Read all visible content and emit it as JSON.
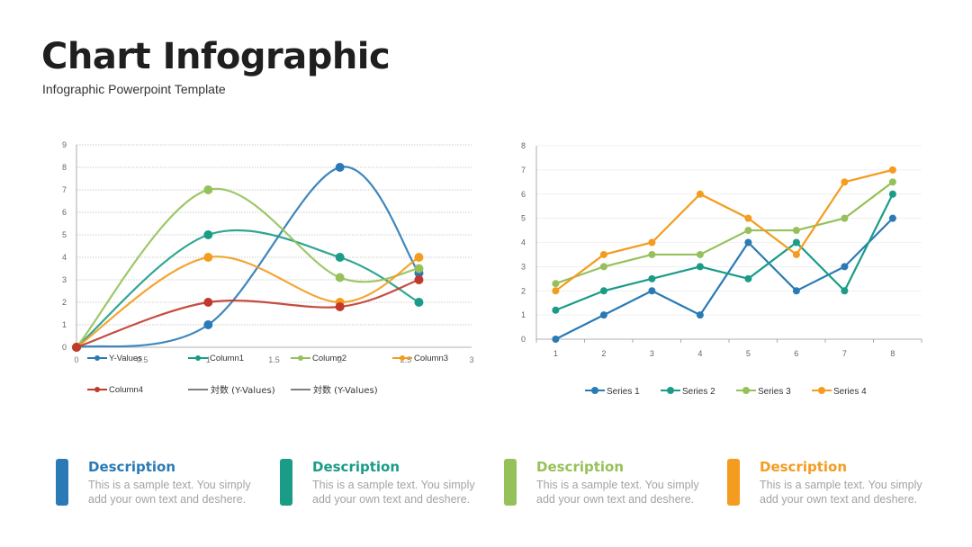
{
  "header": {
    "title": "Chart Infographic",
    "subtitle": "Infographic Powerpoint Template"
  },
  "chart_data": [
    {
      "type": "scatter",
      "smooth": true,
      "x": [
        0,
        1,
        2,
        2.6
      ],
      "xlim": [
        0,
        3
      ],
      "ylim": [
        0,
        9
      ],
      "x_ticks": [
        "0",
        "0.5",
        "1",
        "1.5",
        "2",
        "2.5",
        "3"
      ],
      "y_ticks": [
        "0",
        "1",
        "2",
        "3",
        "4",
        "5",
        "6",
        "7",
        "8",
        "9"
      ],
      "grid": true,
      "legend_position": "bottom",
      "series": [
        {
          "name": "Y-Values",
          "color": "#2a7ab6",
          "values": [
            0,
            1,
            8,
            3.3
          ]
        },
        {
          "name": "Column1",
          "color": "#1a9c86",
          "values": [
            0,
            5,
            4,
            2
          ]
        },
        {
          "name": "Column2",
          "color": "#96c15a",
          "values": [
            0,
            7,
            3.1,
            3.5
          ]
        },
        {
          "name": "Column3",
          "color": "#f39c1f",
          "values": [
            0,
            4,
            2,
            4
          ]
        },
        {
          "name": "Column4",
          "color": "#c0392b",
          "values": [
            0,
            2,
            1.8,
            3
          ]
        }
      ],
      "legend_extra": [
        "対数 (Y-Values)",
        "対数 (Y-Values)"
      ]
    },
    {
      "type": "line",
      "categories": [
        "1",
        "2",
        "3",
        "4",
        "5",
        "6",
        "7",
        "8"
      ],
      "ylim": [
        0,
        8
      ],
      "y_ticks": [
        "0",
        "1",
        "2",
        "3",
        "4",
        "5",
        "6",
        "7",
        "8"
      ],
      "grid": true,
      "legend_position": "bottom",
      "series": [
        {
          "name": "Series 1",
          "color": "#2a7ab6",
          "values": [
            0,
            1,
            2,
            1,
            4,
            2,
            3,
            5
          ]
        },
        {
          "name": "Series 2",
          "color": "#1a9c86",
          "values": [
            1.2,
            2,
            2.5,
            3,
            2.5,
            4,
            2,
            6
          ]
        },
        {
          "name": "Series 3",
          "color": "#96c15a",
          "values": [
            2.3,
            3,
            3.5,
            3.5,
            4.5,
            4.5,
            5,
            6.5
          ]
        },
        {
          "name": "Series 4",
          "color": "#f39c1f",
          "values": [
            2,
            3.5,
            4,
            6,
            5,
            3.5,
            6.5,
            7
          ]
        }
      ]
    }
  ],
  "cards": [
    {
      "heading": "Description",
      "body": "This is a sample text. You simply add your own text and deshere.",
      "color": "#2a7ab6"
    },
    {
      "heading": "Description",
      "body": "This is a sample text. You simply add your own text and deshere.",
      "color": "#1a9c86"
    },
    {
      "heading": "Description",
      "body": "This is a sample text. You simply add your own text and deshere.",
      "color": "#96c15a"
    },
    {
      "heading": "Description",
      "body": "This is a sample text. You simply add your own text and deshere.",
      "color": "#f39c1f"
    }
  ]
}
